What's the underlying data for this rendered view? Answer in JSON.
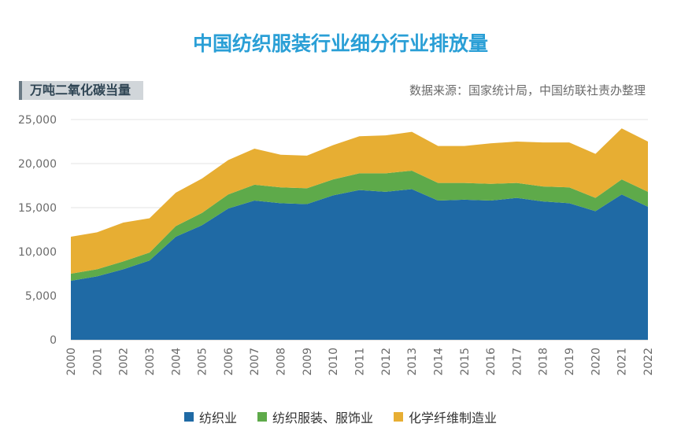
{
  "title": "中国纺织服装行业细分行业排放量",
  "unit_label": "万吨二氧化碳当量",
  "source": "数据来源：国家统计局，中国纺联社责办整理",
  "colors": {
    "textile": "#1f6aa5",
    "apparel": "#5eaa4a",
    "fiber": "#e7ae33"
  },
  "chart_data": {
    "type": "area",
    "stacked": true,
    "x": [
      "2000",
      "2001",
      "2002",
      "2003",
      "2004",
      "2005",
      "2006",
      "2007",
      "2008",
      "2009",
      "2010",
      "2011",
      "2012",
      "2013",
      "2014",
      "2015",
      "2016",
      "2017",
      "2018",
      "2019",
      "2020",
      "2021",
      "2022"
    ],
    "ylim": [
      0,
      25000
    ],
    "yticks": [
      "0",
      "5,000",
      "10,000",
      "15,000",
      "20,000",
      "25,000"
    ],
    "grid": true,
    "legend_position": "bottom",
    "series": [
      {
        "name": "纺织业",
        "color": "#1f6aa5",
        "values": [
          6700,
          7200,
          8000,
          9000,
          11700,
          13000,
          14900,
          15800,
          15500,
          15400,
          16400,
          17000,
          16800,
          17100,
          15800,
          15900,
          15800,
          16100,
          15700,
          15500,
          14600,
          16500,
          15100
        ]
      },
      {
        "name": "纺织服装、服饰业",
        "color": "#5eaa4a",
        "values": [
          800,
          800,
          900,
          900,
          1200,
          1400,
          1600,
          1800,
          1800,
          1800,
          1800,
          1900,
          2100,
          2100,
          2000,
          1900,
          1900,
          1700,
          1700,
          1800,
          1500,
          1700,
          1700
        ]
      },
      {
        "name": "化学纤维制造业",
        "color": "#e7ae33",
        "values": [
          4200,
          4200,
          4400,
          3900,
          3800,
          3900,
          3900,
          4100,
          3700,
          3700,
          3900,
          4200,
          4300,
          4400,
          4200,
          4200,
          4600,
          4700,
          5000,
          5100,
          5000,
          5800,
          5700
        ]
      }
    ]
  }
}
